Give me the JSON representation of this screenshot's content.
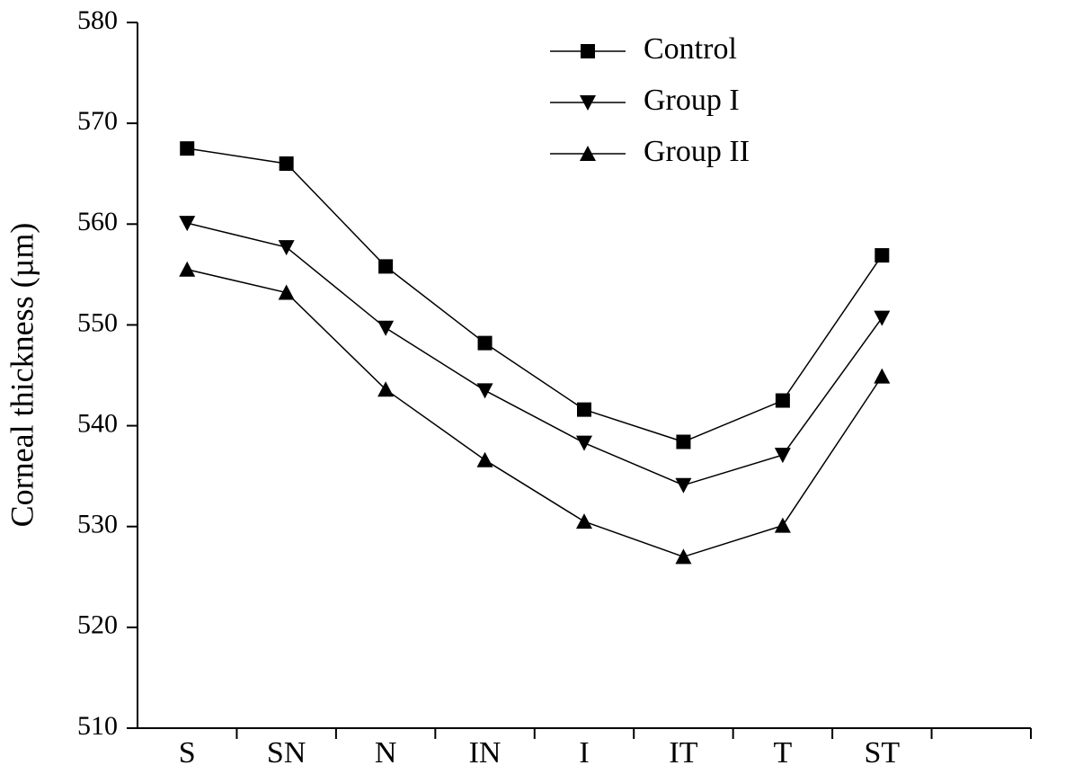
{
  "chart_data": {
    "type": "line",
    "y_label": "Corneal thickness (µm)",
    "categories": [
      "S",
      "SN",
      "N",
      "IN",
      "I",
      "IT",
      "T",
      "ST",
      null
    ],
    "series": [
      {
        "name": "Control",
        "color": "#000000",
        "marker": "square",
        "values": [
          567.5,
          566.0,
          555.8,
          548.2,
          541.6,
          538.4,
          542.5,
          556.9,
          null
        ]
      },
      {
        "name": "Group I",
        "color": "#000000",
        "marker": "triangle-down",
        "values": [
          560.1,
          557.7,
          549.7,
          543.5,
          538.3,
          534.1,
          537.1,
          550.7,
          null
        ]
      },
      {
        "name": "Group II",
        "color": "#000000",
        "marker": "triangle-up",
        "values": [
          555.5,
          553.2,
          543.6,
          536.6,
          530.5,
          527.0,
          530.1,
          544.9,
          null
        ]
      }
    ],
    "ylim": [
      510,
      580
    ],
    "yticks": [
      510,
      520,
      530,
      540,
      550,
      560,
      570,
      580
    ],
    "grid": false,
    "legend": "top"
  }
}
